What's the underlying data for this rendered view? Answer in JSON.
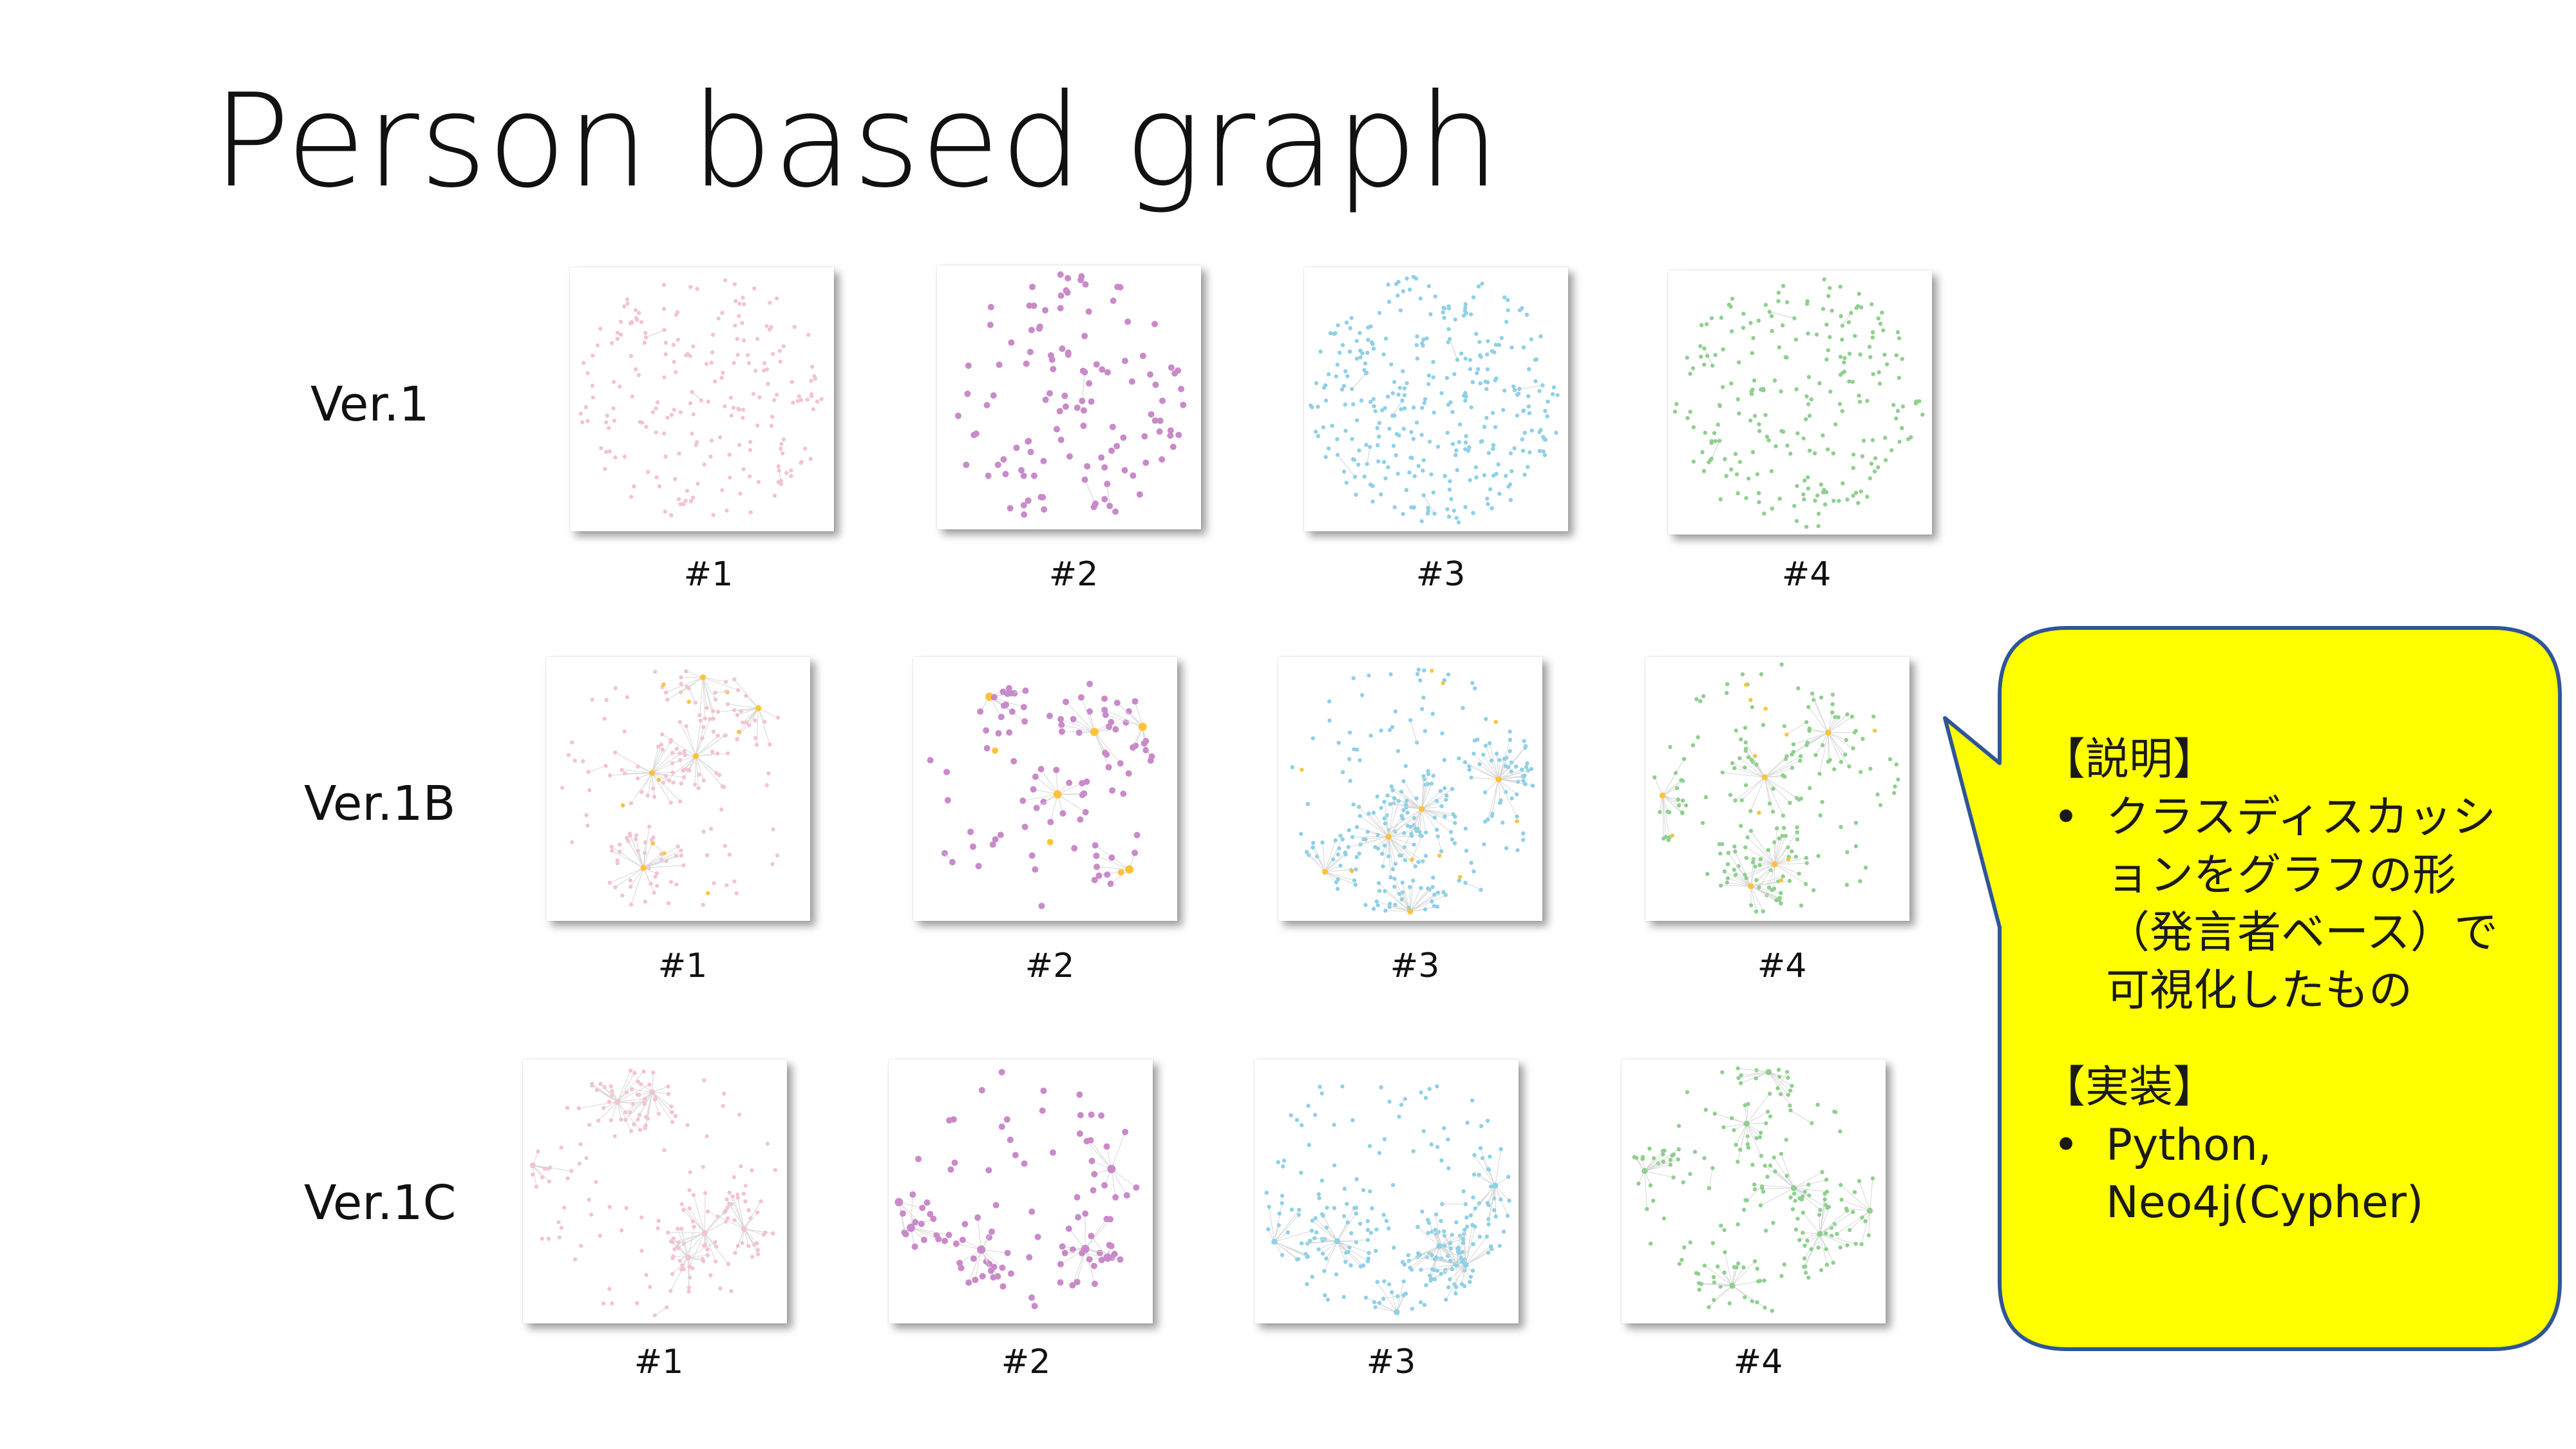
{
  "slide": {
    "title": "Person based graph"
  },
  "grid": {
    "rows": [
      {
        "label": "Ver.1",
        "layout": "scattered",
        "items": [
          {
            "caption": "#1",
            "node_color": "#f2c4cf",
            "node_count": 210,
            "hub_color": "#ffc23a"
          },
          {
            "caption": "#2",
            "node_color": "#c98ac9",
            "node_count": 120,
            "hub_color": "#ffc23a"
          },
          {
            "caption": "#3",
            "node_color": "#8fd0e6",
            "node_count": 330,
            "hub_color": "#ffc23a"
          },
          {
            "caption": "#4",
            "node_color": "#8fcf8f",
            "node_count": 230,
            "hub_color": "#ffc23a"
          }
        ]
      },
      {
        "label": "Ver.1B",
        "layout": "clustered-with-hubs",
        "items": [
          {
            "caption": "#1",
            "node_color": "#f2c4cf",
            "node_count": 210,
            "hub_color": "#ffc23a"
          },
          {
            "caption": "#2",
            "node_color": "#c98ac9",
            "node_count": 120,
            "hub_color": "#ffc23a"
          },
          {
            "caption": "#3",
            "node_color": "#8fd0e6",
            "node_count": 330,
            "hub_color": "#ffc23a"
          },
          {
            "caption": "#4",
            "node_color": "#8fcf8f",
            "node_count": 230,
            "hub_color": "#ffc23a"
          }
        ]
      },
      {
        "label": "Ver.1C",
        "layout": "clustered",
        "items": [
          {
            "caption": "#1",
            "node_color": "#f2c4cf",
            "node_count": 210,
            "hub_color": "#ffc23a"
          },
          {
            "caption": "#2",
            "node_color": "#c98ac9",
            "node_count": 120,
            "hub_color": "#ffc23a"
          },
          {
            "caption": "#3",
            "node_color": "#8fd0e6",
            "node_count": 330,
            "hub_color": "#ffc23a"
          },
          {
            "caption": "#4",
            "node_color": "#8fcf8f",
            "node_count": 230,
            "hub_color": "#ffc23a"
          }
        ]
      }
    ]
  },
  "callout": {
    "fill": "#ffff00",
    "stroke": "#2f5597",
    "sections": [
      {
        "heading": "【説明】",
        "bullets": [
          "クラスディスカッションをグラフの形（発言者ベース）で可視化したもの"
        ]
      },
      {
        "heading": "【実装】",
        "bullets": [
          "Python, Neo4j(Cypher)"
        ]
      }
    ]
  }
}
